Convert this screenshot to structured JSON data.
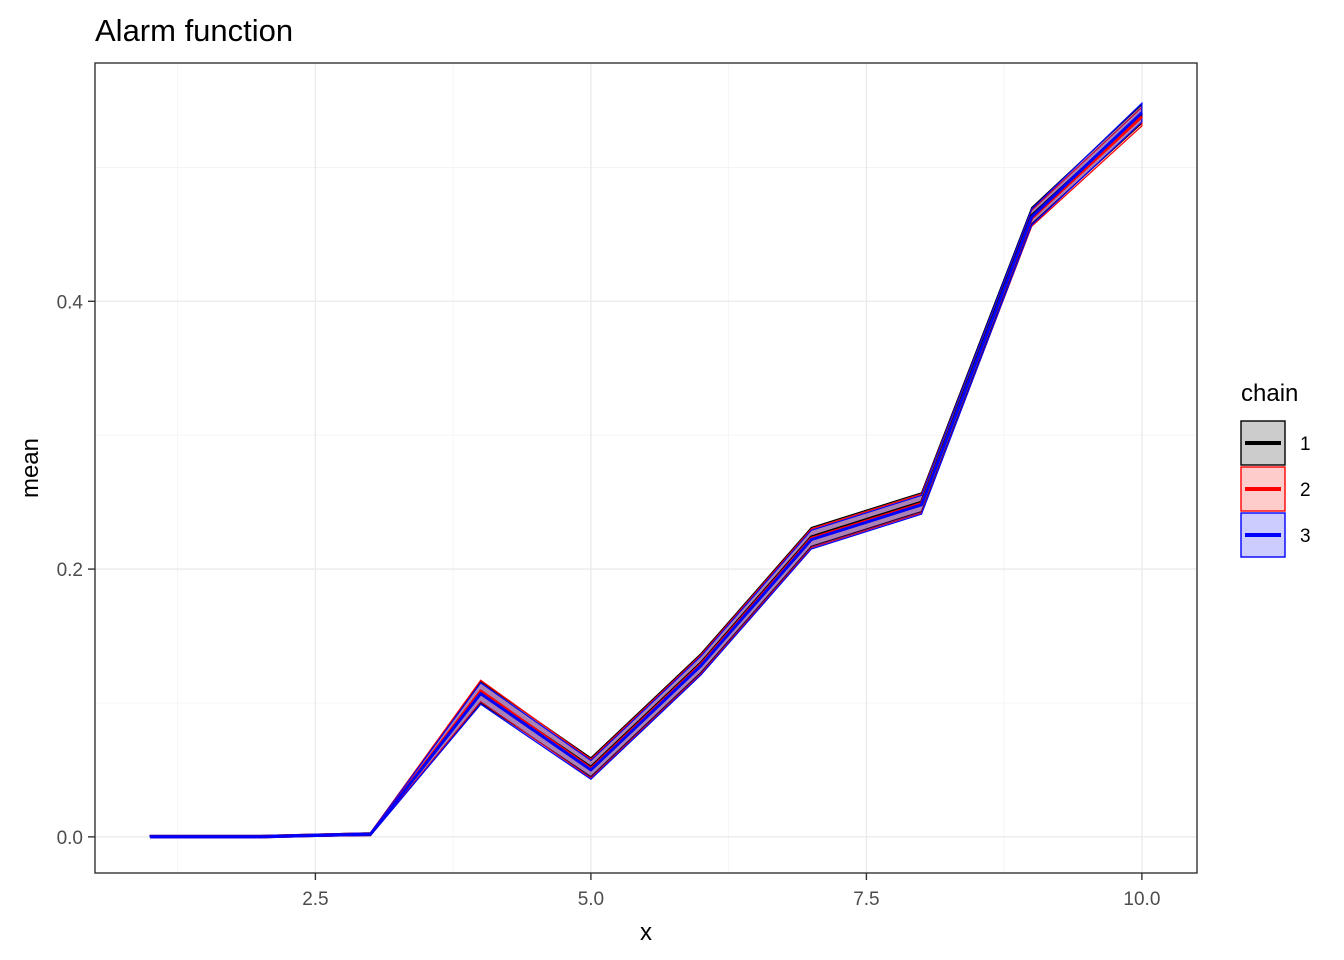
{
  "chart_data": {
    "type": "line",
    "title": "Alarm function",
    "xlabel": "x",
    "ylabel": "mean",
    "xlim": [
      0.5,
      10.5
    ],
    "ylim": [
      -0.027,
      0.578
    ],
    "x_major_ticks": [
      2.5,
      5.0,
      7.5,
      10.0
    ],
    "x_tick_labels": [
      "2.5",
      "5.0",
      "7.5",
      "10.0"
    ],
    "x_minor_ticks": [
      1.25,
      3.75,
      6.25,
      8.75
    ],
    "y_major_ticks": [
      0.0,
      0.2,
      0.4
    ],
    "y_tick_labels": [
      "0.0",
      "0.2",
      "0.4"
    ],
    "y_minor_ticks": [
      0.1,
      0.3,
      0.5
    ],
    "grid": true,
    "legend": {
      "title": "chain",
      "position": "right",
      "entries": [
        "1",
        "2",
        "3"
      ]
    },
    "x": [
      1,
      2,
      3,
      4,
      5,
      6,
      7,
      8,
      9,
      10
    ],
    "series": [
      {
        "name": "1",
        "color": "#000000",
        "fill": "#000000",
        "fill_opacity": 0.2,
        "mean": [
          0.0,
          0.0,
          0.002,
          0.108,
          0.052,
          0.13,
          0.224,
          0.25,
          0.464,
          0.54
        ],
        "lower": [
          0.0,
          0.0,
          0.001,
          0.1,
          0.045,
          0.123,
          0.217,
          0.243,
          0.458,
          0.533
        ],
        "upper": [
          0.001,
          0.001,
          0.003,
          0.116,
          0.059,
          0.137,
          0.231,
          0.257,
          0.47,
          0.547
        ]
      },
      {
        "name": "2",
        "color": "#ff0000",
        "fill": "#ff0000",
        "fill_opacity": 0.2,
        "mean": [
          0.0,
          0.0,
          0.002,
          0.109,
          0.051,
          0.129,
          0.223,
          0.249,
          0.462,
          0.538
        ],
        "lower": [
          0.0,
          0.0,
          0.001,
          0.101,
          0.044,
          0.122,
          0.216,
          0.242,
          0.456,
          0.531
        ],
        "upper": [
          0.001,
          0.001,
          0.003,
          0.117,
          0.058,
          0.136,
          0.23,
          0.256,
          0.468,
          0.545
        ]
      },
      {
        "name": "3",
        "color": "#0000ff",
        "fill": "#0000ff",
        "fill_opacity": 0.2,
        "mean": [
          0.0,
          0.0,
          0.002,
          0.107,
          0.05,
          0.128,
          0.222,
          0.248,
          0.463,
          0.541
        ],
        "lower": [
          0.0,
          0.0,
          0.001,
          0.099,
          0.043,
          0.121,
          0.215,
          0.241,
          0.457,
          0.534
        ],
        "upper": [
          0.001,
          0.001,
          0.003,
          0.115,
          0.057,
          0.135,
          0.229,
          0.255,
          0.469,
          0.548
        ]
      }
    ]
  }
}
